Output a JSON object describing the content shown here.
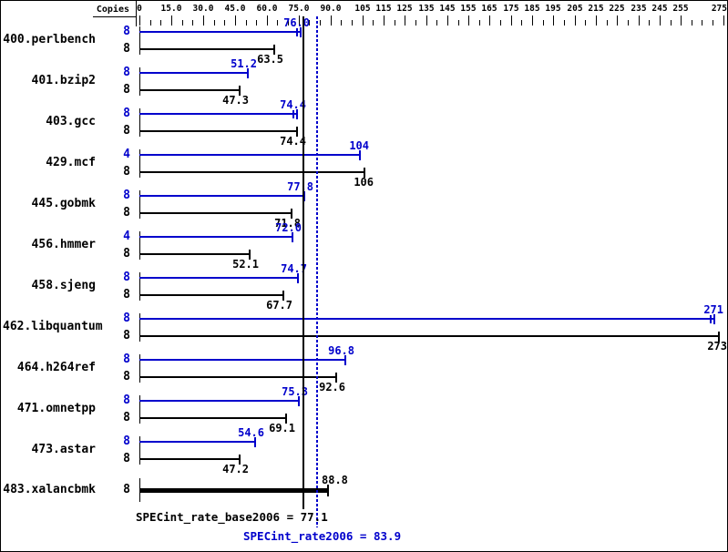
{
  "header": {
    "copies_label": "Copies"
  },
  "colors": {
    "rate_blue": "#0000CC",
    "base_black": "#000000",
    "background": "#FFFFFF"
  },
  "chart_data": {
    "type": "bar",
    "orientation": "horizontal",
    "title": "",
    "xlabel": "",
    "ylabel": "Copies",
    "axis": {
      "min": 0,
      "max": 275,
      "minor_tick_step": 5,
      "tick_labels": [
        {
          "value": 0,
          "text": "0"
        },
        {
          "value": 15,
          "text": "15.0"
        },
        {
          "value": 30,
          "text": "30.0"
        },
        {
          "value": 45,
          "text": "45.0"
        },
        {
          "value": 60,
          "text": "60.0"
        },
        {
          "value": 75,
          "text": "75.0"
        },
        {
          "value": 90,
          "text": "90.0"
        },
        {
          "value": 105,
          "text": "105"
        },
        {
          "value": 115,
          "text": "115"
        },
        {
          "value": 125,
          "text": "125"
        },
        {
          "value": 135,
          "text": "135"
        },
        {
          "value": 145,
          "text": "145"
        },
        {
          "value": 155,
          "text": "155"
        },
        {
          "value": 165,
          "text": "165"
        },
        {
          "value": 175,
          "text": "175"
        },
        {
          "value": 185,
          "text": "185"
        },
        {
          "value": 195,
          "text": "195"
        },
        {
          "value": 205,
          "text": "205"
        },
        {
          "value": 215,
          "text": "215"
        },
        {
          "value": 225,
          "text": "225"
        },
        {
          "value": 235,
          "text": "235"
        },
        {
          "value": 245,
          "text": "245"
        },
        {
          "value": 255,
          "text": "255"
        },
        {
          "value": 275,
          "text": "275"
        }
      ]
    },
    "benchmarks": [
      {
        "name": "400.perlbench",
        "bars": [
          {
            "kind": "rate",
            "copies": "8",
            "value": 76.0,
            "label": "76.0",
            "double_cap": true
          },
          {
            "kind": "base",
            "copies": "8",
            "value": 63.5,
            "label": "63.5"
          }
        ]
      },
      {
        "name": "401.bzip2",
        "bars": [
          {
            "kind": "rate",
            "copies": "8",
            "value": 51.2,
            "label": "51.2"
          },
          {
            "kind": "base",
            "copies": "8",
            "value": 47.3,
            "label": "47.3"
          }
        ]
      },
      {
        "name": "403.gcc",
        "bars": [
          {
            "kind": "rate",
            "copies": "8",
            "value": 74.4,
            "label": "74.4",
            "double_cap": true
          },
          {
            "kind": "base",
            "copies": "8",
            "value": 74.4,
            "label": "74.4"
          }
        ]
      },
      {
        "name": "429.mcf",
        "bars": [
          {
            "kind": "rate",
            "copies": "4",
            "value": 104,
            "label": "104"
          },
          {
            "kind": "base",
            "copies": "8",
            "value": 106,
            "label": "106"
          }
        ]
      },
      {
        "name": "445.gobmk",
        "bars": [
          {
            "kind": "rate",
            "copies": "8",
            "value": 77.8,
            "label": "77.8"
          },
          {
            "kind": "base",
            "copies": "8",
            "value": 71.8,
            "label": "71.8"
          }
        ]
      },
      {
        "name": "456.hmmer",
        "bars": [
          {
            "kind": "rate",
            "copies": "4",
            "value": 72.0,
            "label": "72.0"
          },
          {
            "kind": "base",
            "copies": "8",
            "value": 52.1,
            "label": "52.1"
          }
        ]
      },
      {
        "name": "458.sjeng",
        "bars": [
          {
            "kind": "rate",
            "copies": "8",
            "value": 74.7,
            "label": "74.7"
          },
          {
            "kind": "base",
            "copies": "8",
            "value": 67.7,
            "label": "67.7"
          }
        ]
      },
      {
        "name": "462.libquantum",
        "bars": [
          {
            "kind": "rate",
            "copies": "8",
            "value": 271,
            "label": "271",
            "double_cap": true
          },
          {
            "kind": "base",
            "copies": "8",
            "value": 273,
            "label": "273"
          }
        ]
      },
      {
        "name": "464.h264ref",
        "bars": [
          {
            "kind": "rate",
            "copies": "8",
            "value": 96.8,
            "label": "96.8"
          },
          {
            "kind": "base",
            "copies": "8",
            "value": 92.6,
            "label": "92.6"
          }
        ]
      },
      {
        "name": "471.omnetpp",
        "bars": [
          {
            "kind": "rate",
            "copies": "8",
            "value": 75.3,
            "label": "75.3"
          },
          {
            "kind": "base",
            "copies": "8",
            "value": 69.1,
            "label": "69.1"
          }
        ]
      },
      {
        "name": "473.astar",
        "bars": [
          {
            "kind": "rate",
            "copies": "8",
            "value": 54.6,
            "label": "54.6"
          },
          {
            "kind": "base",
            "copies": "8",
            "value": 47.2,
            "label": "47.2"
          }
        ]
      },
      {
        "name": "483.xalancbmk",
        "single": true,
        "bars": [
          {
            "kind": "base",
            "copies": "8",
            "value": 88.8,
            "label": "88.8",
            "thick": true,
            "label_beside_mean_line": true
          }
        ]
      }
    ],
    "means": [
      {
        "id": "base_mean",
        "metric": "SPECint_rate_base2006",
        "value": 77.1,
        "text": "SPECint_rate_base2006 = 77.1",
        "line_style": "solid",
        "color_key": "base_black"
      },
      {
        "id": "peak_mean",
        "metric": "SPECint_rate2006",
        "value": 83.9,
        "text": "SPECint_rate2006 = 83.9",
        "line_style": "dotted",
        "color_key": "rate_blue"
      }
    ]
  }
}
